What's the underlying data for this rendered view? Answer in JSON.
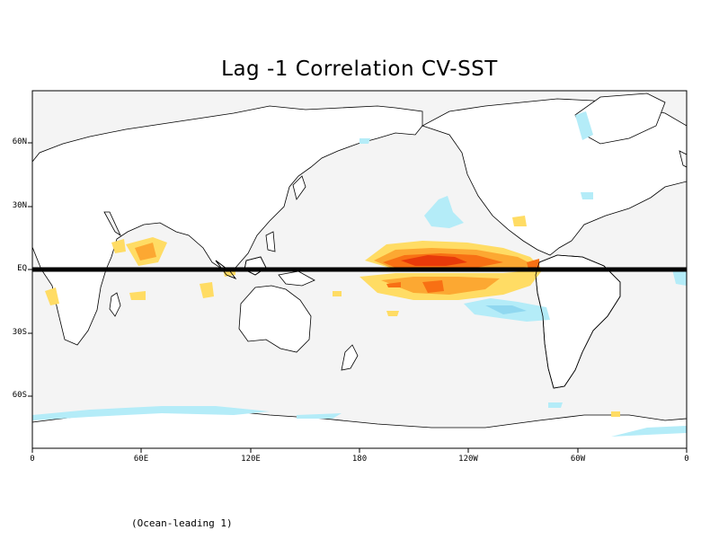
{
  "title": "Lag -1 Correlation CV-SST",
  "caption": "(Ocean-leading 1)",
  "y_ticks": [
    "60N",
    "30N",
    "EQ",
    "30S",
    "60S"
  ],
  "x_ticks": [
    "0",
    "60E",
    "120E",
    "180",
    "120W",
    "60W",
    "0"
  ],
  "colors": {
    "background_field": "#f4f4f4",
    "land": "#ffffff",
    "coast": "#000000",
    "light_blue": "#b4ecf8",
    "blue": "#90d8f0",
    "yellow": "#ffdc64",
    "orange": "#fca832",
    "red_orange": "#f87014",
    "red": "#e83a0a",
    "equator_line": "#000000"
  }
}
